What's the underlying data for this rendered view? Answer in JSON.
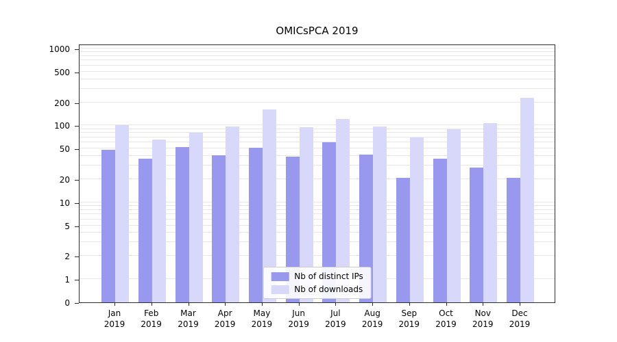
{
  "title": "OMICsPCA 2019",
  "chart_data": {
    "type": "bar",
    "title": "OMICsPCA 2019",
    "categories": [
      "Jan",
      "Feb",
      "Mar",
      "Apr",
      "May",
      "Jun",
      "Jul",
      "Aug",
      "Sep",
      "Oct",
      "Nov",
      "Dec"
    ],
    "category_year": "2019",
    "series": [
      {
        "name": "Nb of distinct IPs",
        "color": "#9898ee",
        "values": [
          48,
          37,
          52,
          41,
          51,
          39,
          60,
          42,
          21,
          37,
          28,
          21
        ]
      },
      {
        "name": "Nb of downloads",
        "color": "#d8d8fa",
        "values": [
          100,
          65,
          80,
          97,
          160,
          94,
          120,
          96,
          70,
          89,
          108,
          230
        ]
      }
    ],
    "yscale": "symlog",
    "yticks": [
      0,
      1,
      2,
      5,
      10,
      20,
      50,
      100,
      200,
      500,
      1000
    ],
    "ylim": [
      0,
      1000
    ],
    "grid": true,
    "legend_position": "lower center",
    "legend_labels": [
      "Nb of distinct IPs",
      "Nb of downloads"
    ]
  }
}
